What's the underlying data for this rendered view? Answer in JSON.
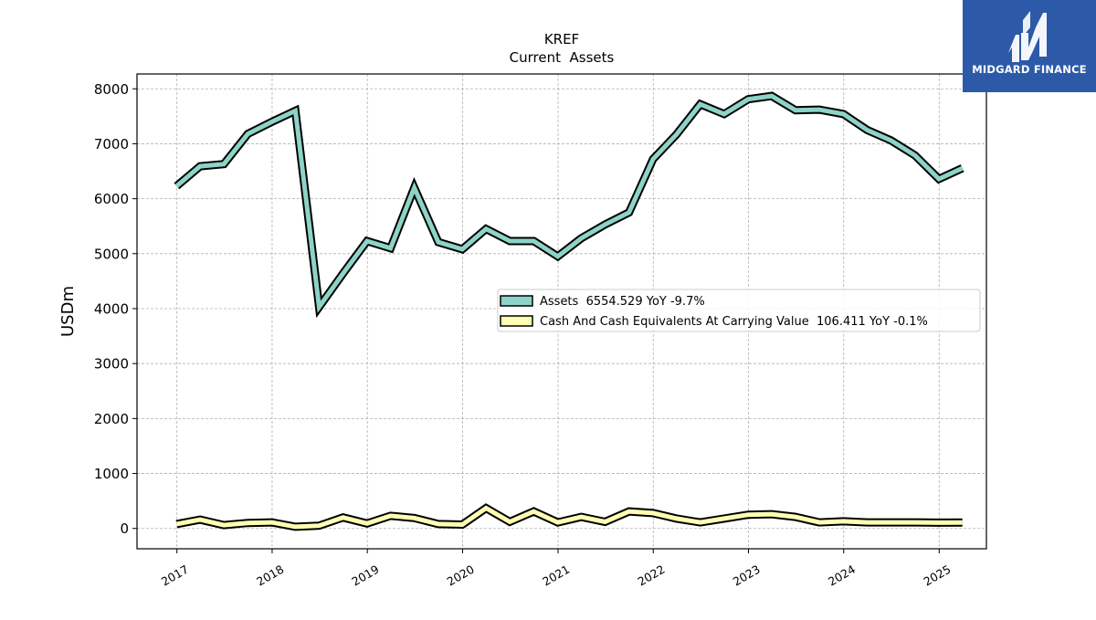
{
  "brand": {
    "name": "MIDGARD FINANCE",
    "color": "#2c5aa8"
  },
  "chart_data": {
    "type": "line",
    "title": "KREF",
    "subtitle": "Current  Assets",
    "xlabel": "",
    "ylabel": "USDm",
    "x_ticks": [
      "2017",
      "2018",
      "2019",
      "2020",
      "2021",
      "2022",
      "2023",
      "2024",
      "2025"
    ],
    "y_ticks": [
      0,
      1000,
      2000,
      3000,
      4000,
      5000,
      6000,
      7000,
      8000
    ],
    "xlim": [
      "2016-08-01",
      "2025-07-01"
    ],
    "ylim": [
      -370,
      8270
    ],
    "grid": true,
    "legend_position": "center-right",
    "x": [
      "2016-12-31",
      "2017-03-31",
      "2017-06-30",
      "2017-09-30",
      "2017-12-31",
      "2018-03-31",
      "2018-06-30",
      "2018-09-30",
      "2018-12-31",
      "2019-03-31",
      "2019-06-30",
      "2019-09-30",
      "2019-12-31",
      "2020-03-31",
      "2020-06-30",
      "2020-09-30",
      "2020-12-31",
      "2021-03-31",
      "2021-06-30",
      "2021-09-30",
      "2021-12-31",
      "2022-03-31",
      "2022-06-30",
      "2022-09-30",
      "2022-12-31",
      "2023-03-31",
      "2023-06-30",
      "2023-09-30",
      "2023-12-31",
      "2024-03-31",
      "2024-06-30",
      "2024-09-30",
      "2024-12-31",
      "2025-03-31"
    ],
    "series": [
      {
        "name": "Assets  6554.529 YoY -9.7%",
        "color": "#8dd3c7",
        "values": [
          6230,
          6590,
          6630,
          7180,
          7400,
          7600,
          4030,
          4640,
          5230,
          5100,
          6200,
          5210,
          5080,
          5450,
          5230,
          5230,
          4950,
          5280,
          5530,
          5750,
          6720,
          7170,
          7720,
          7540,
          7810,
          7870,
          7610,
          7620,
          7540,
          7250,
          7060,
          6790,
          6360,
          6554.529
        ]
      },
      {
        "name": "Cash And Cash Equivalents At Carrying Value  106.411 YoY -0.1%",
        "color": "#ffffb3",
        "values": [
          80,
          160,
          60,
          100,
          110,
          30,
          50,
          200,
          90,
          230,
          190,
          80,
          70,
          370,
          120,
          310,
          110,
          210,
          120,
          310,
          280,
          180,
          110,
          180,
          250,
          260,
          210,
          110,
          130,
          110,
          110,
          110,
          106,
          106.411
        ]
      }
    ]
  }
}
